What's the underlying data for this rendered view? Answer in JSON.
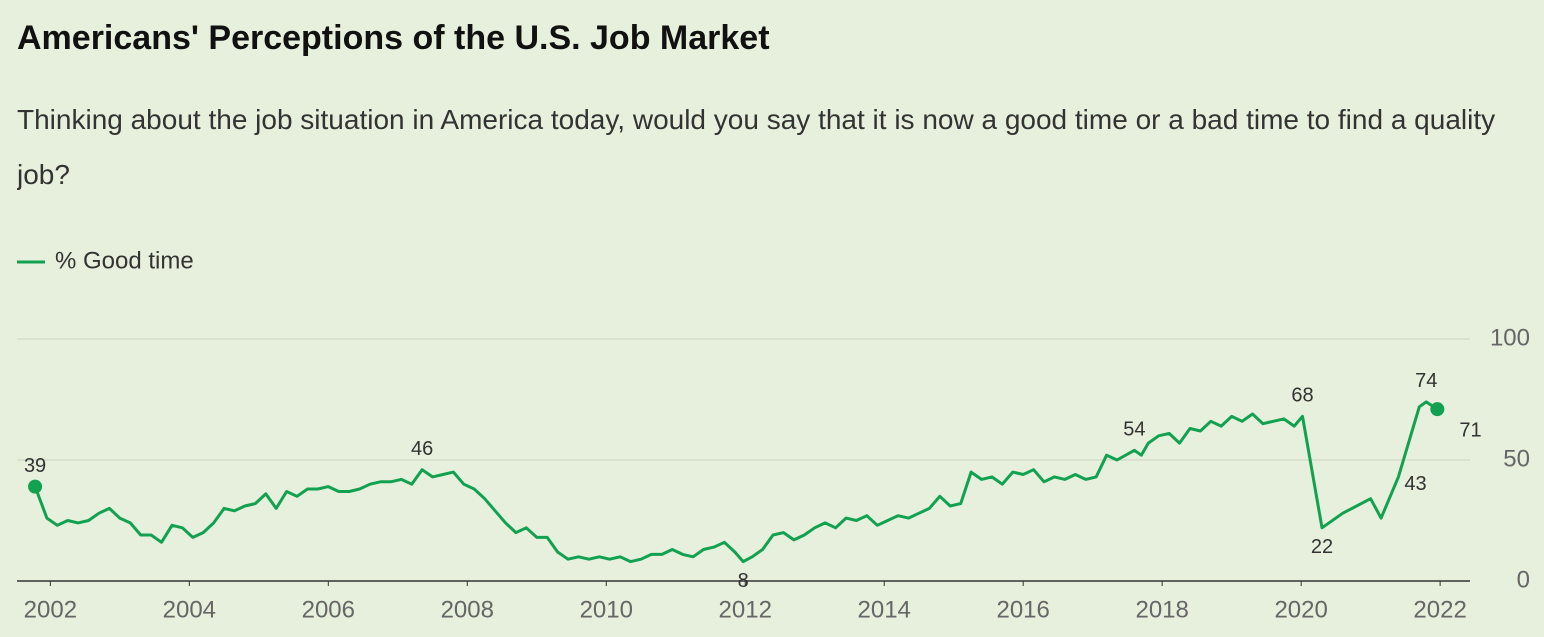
{
  "chart_data": {
    "type": "line",
    "title": "Americans' Perceptions of the U.S. Job Market",
    "subtitle": "Thinking about the job situation in America today, would you say that it is now a good time or a bad time to find a quality job?",
    "x": [
      2001.78,
      2001.95,
      2002.1,
      2002.25,
      2002.4,
      2002.55,
      2002.7,
      2002.85,
      2003.0,
      2003.15,
      2003.3,
      2003.45,
      2003.6,
      2003.75,
      2003.9,
      2004.05,
      2004.2,
      2004.35,
      2004.5,
      2004.65,
      2004.8,
      2004.95,
      2005.1,
      2005.25,
      2005.4,
      2005.55,
      2005.7,
      2005.85,
      2006.0,
      2006.15,
      2006.3,
      2006.45,
      2006.6,
      2006.75,
      2006.9,
      2007.05,
      2007.2,
      2007.35,
      2007.5,
      2007.65,
      2007.8,
      2007.95,
      2008.1,
      2008.25,
      2008.4,
      2008.55,
      2008.7,
      2008.85,
      2009.0,
      2009.15,
      2009.3,
      2009.45,
      2009.6,
      2009.75,
      2009.9,
      2010.05,
      2010.2,
      2010.35,
      2010.5,
      2010.65,
      2010.8,
      2010.95,
      2011.1,
      2011.25,
      2011.4,
      2011.55,
      2011.7,
      2011.85,
      2011.97,
      2012.1,
      2012.25,
      2012.4,
      2012.55,
      2012.7,
      2012.85,
      2013.0,
      2013.15,
      2013.3,
      2013.45,
      2013.6,
      2013.75,
      2013.9,
      2014.05,
      2014.2,
      2014.35,
      2014.5,
      2014.65,
      2014.8,
      2014.95,
      2015.1,
      2015.25,
      2015.4,
      2015.55,
      2015.7,
      2015.85,
      2016.0,
      2016.15,
      2016.3,
      2016.45,
      2016.6,
      2016.75,
      2016.9,
      2017.05,
      2017.2,
      2017.35,
      2017.6,
      2017.7,
      2017.8,
      2017.95,
      2018.1,
      2018.25,
      2018.4,
      2018.55,
      2018.7,
      2018.85,
      2019.0,
      2019.15,
      2019.3,
      2019.45,
      2019.6,
      2019.75,
      2019.9,
      2020.02,
      2020.3,
      2020.6,
      2021.0,
      2021.15,
      2021.4,
      2021.7,
      2021.8,
      2021.96
    ],
    "series": [
      {
        "name": "% Good time",
        "color": "#12a150",
        "values": [
          39,
          26,
          23,
          25,
          24,
          25,
          28,
          30,
          26,
          24,
          19,
          19,
          16,
          23,
          22,
          18,
          20,
          24,
          30,
          29,
          31,
          32,
          36,
          30,
          37,
          35,
          38,
          38,
          39,
          37,
          37,
          38,
          40,
          41,
          41,
          42,
          40,
          46,
          43,
          44,
          45,
          40,
          38,
          34,
          29,
          24,
          20,
          22,
          18,
          18,
          12,
          9,
          10,
          9,
          10,
          9,
          10,
          8,
          9,
          11,
          11,
          13,
          11,
          10,
          13,
          14,
          16,
          12,
          8,
          10,
          13,
          19,
          20,
          17,
          19,
          22,
          24,
          22,
          26,
          25,
          27,
          23,
          25,
          27,
          26,
          28,
          30,
          35,
          31,
          32,
          45,
          42,
          43,
          40,
          45,
          44,
          46,
          41,
          43,
          42,
          44,
          42,
          43,
          52,
          50,
          54,
          52,
          57,
          60,
          61,
          57,
          63,
          62,
          66,
          64,
          68,
          66,
          69,
          65,
          66,
          67,
          64,
          68,
          22,
          28,
          34,
          26,
          43,
          72,
          74,
          71
        ],
        "value_labels": [
          "39",
          null,
          null,
          null,
          null,
          null,
          null,
          null,
          null,
          null,
          null,
          null,
          null,
          null,
          null,
          null,
          null,
          null,
          null,
          null,
          null,
          null,
          null,
          null,
          null,
          null,
          null,
          null,
          null,
          null,
          null,
          null,
          null,
          null,
          null,
          null,
          null,
          "46",
          null,
          null,
          null,
          null,
          null,
          null,
          null,
          null,
          null,
          null,
          null,
          null,
          null,
          null,
          null,
          null,
          null,
          null,
          null,
          null,
          null,
          null,
          null,
          null,
          null,
          null,
          null,
          null,
          null,
          null,
          "8",
          null,
          null,
          null,
          null,
          null,
          null,
          null,
          null,
          null,
          null,
          null,
          null,
          null,
          null,
          null,
          null,
          null,
          null,
          null,
          null,
          null,
          null,
          null,
          null,
          null,
          null,
          null,
          null,
          null,
          null,
          null,
          null,
          null,
          null,
          null,
          null,
          "54",
          null,
          null,
          null,
          null,
          null,
          null,
          null,
          null,
          null,
          null,
          null,
          null,
          null,
          null,
          null,
          null,
          "68",
          "22",
          null,
          null,
          null,
          "43",
          null,
          "74",
          "71"
        ]
      }
    ],
    "xlim": [
      2001.52,
      2022.43
    ],
    "xticks": [
      2002,
      2004,
      2006,
      2008,
      2010,
      2012,
      2014,
      2016,
      2018,
      2020,
      2022
    ],
    "ylim": [
      0,
      100
    ],
    "yticks": [
      0,
      50,
      100
    ],
    "grid": true
  }
}
